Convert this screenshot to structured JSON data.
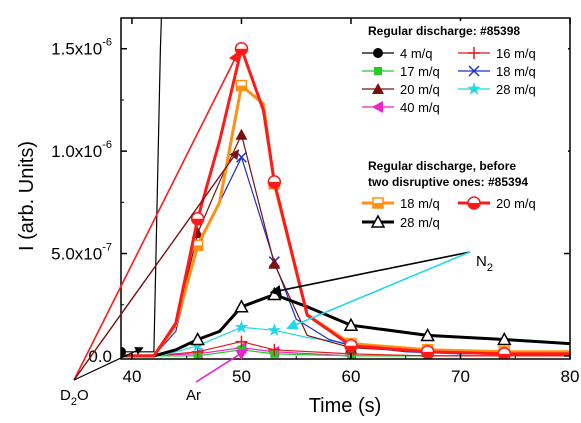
{
  "chart_data": {
    "type": "line",
    "xlabel": "Time (s)",
    "ylabel": "I (arb. Units)",
    "xlim": [
      39,
      80
    ],
    "ylim": [
      -1.5e-08,
      1.65e-06
    ],
    "x_ticks": [
      40,
      50,
      60,
      70,
      80
    ],
    "y_tick_labels": [
      {
        "value": 0,
        "base": "0.0",
        "exp": ""
      },
      {
        "value": 5e-07,
        "base": "5.0x10",
        "exp": "-7"
      },
      {
        "value": 1e-06,
        "base": "1.0x10",
        "exp": "-6"
      },
      {
        "value": 1.5e-06,
        "base": "1.5x10",
        "exp": "-6"
      }
    ],
    "legend_group1_title": "Regular discharge: #85398",
    "legend_group2_title_line1": "Regular discharge, before",
    "legend_group2_title_line2": "two disruptive ones: #85394",
    "series": [
      {
        "name": "4 m/q",
        "group": 1,
        "color": "#000000",
        "marker": "circle",
        "width": 1.2,
        "x": [
          39,
          40,
          42,
          42.6,
          43.5
        ],
        "y": [
          2e-08,
          2e-08,
          2e-08,
          1.5e-06,
          3e-06
        ]
      },
      {
        "name": "16 m/q",
        "group": 1,
        "color": "#e21b1b",
        "marker": "plus",
        "width": 1.2,
        "x": [
          39,
          43,
          46,
          50,
          53,
          60,
          67,
          74,
          80
        ],
        "y": [
          0,
          5e-09,
          2e-08,
          7e-08,
          3e-08,
          1e-08,
          0,
          0,
          0
        ]
      },
      {
        "name": "17 m/q",
        "group": 1,
        "color": "#22cc22",
        "marker": "square-filled",
        "width": 1.2,
        "x": [
          39,
          46,
          50,
          53,
          60,
          67,
          74,
          80
        ],
        "y": [
          0,
          0,
          3e-08,
          1e-08,
          0,
          0,
          0,
          0
        ]
      },
      {
        "name": "18 m/q",
        "group": 1,
        "color": "#1f2fd0",
        "marker": "x",
        "width": 1.2,
        "x": [
          39,
          42,
          44,
          46,
          48,
          50,
          53,
          55,
          58,
          60,
          65,
          70,
          75,
          80
        ],
        "y": [
          0,
          0,
          1.2e-07,
          5.5e-07,
          7.5e-07,
          9.7e-07,
          4.6e-07,
          1.8e-07,
          8e-08,
          5e-08,
          2e-08,
          1e-08,
          1e-08,
          5e-09
        ]
      },
      {
        "name": "20 m/q",
        "group": 1,
        "color": "#7a1010",
        "marker": "triangle-filled",
        "width": 1.2,
        "x": [
          39,
          42,
          44,
          46,
          48,
          50,
          53,
          56,
          60,
          67,
          74,
          80
        ],
        "y": [
          0,
          0,
          1.5e-07,
          6e-07,
          8.5e-07,
          1.08e-06,
          4.5e-07,
          1e-07,
          4e-08,
          2e-08,
          1e-08,
          1e-08
        ]
      },
      {
        "name": "28 m/q",
        "group": 1,
        "color": "#22d8e8",
        "marker": "star",
        "width": 1.2,
        "x": [
          39,
          43,
          46,
          50,
          53,
          56,
          60,
          67,
          74,
          80
        ],
        "y": [
          0,
          5e-09,
          5e-08,
          1.4e-07,
          1.25e-07,
          9e-08,
          6e-08,
          3e-08,
          2e-08,
          1e-08
        ]
      },
      {
        "name": "40 m/q",
        "group": 1,
        "color": "#ee22cc",
        "marker": "triangle-left-filled",
        "width": 1.2,
        "x": [
          39,
          46,
          50,
          53,
          60,
          67,
          74,
          80
        ],
        "y": [
          0,
          1e-08,
          4e-08,
          2e-08,
          0,
          0,
          0,
          0
        ]
      },
      {
        "name": "18 m/q",
        "group": 2,
        "color": "#ff9014",
        "marker": "square-half",
        "width": 3,
        "x": [
          39,
          42,
          44,
          46,
          48,
          50,
          52,
          53,
          56,
          60,
          67,
          74,
          80
        ],
        "y": [
          0,
          0,
          1.5e-07,
          5.4e-07,
          7.5e-07,
          1.32e-06,
          1.23e-06,
          8.4e-07,
          2e-07,
          6e-08,
          3e-08,
          2e-08,
          2e-08
        ]
      },
      {
        "name": "20 m/q",
        "group": 2,
        "color": "#ff1a1a",
        "marker": "circle-half",
        "width": 3,
        "x": [
          39,
          42,
          44,
          46,
          48,
          50,
          52,
          53,
          56,
          60,
          67,
          74,
          80
        ],
        "y": [
          0,
          0,
          1.6e-07,
          6.7e-07,
          1.05e-06,
          1.5e-06,
          1.2e-06,
          8.5e-07,
          2e-07,
          5e-08,
          2e-08,
          1e-08,
          1e-08
        ]
      },
      {
        "name": "28 m/q",
        "group": 2,
        "color": "#000000",
        "marker": "triangle-open",
        "width": 3,
        "x": [
          39,
          42,
          44,
          46,
          48,
          50,
          53,
          56,
          60,
          67,
          74,
          80
        ],
        "y": [
          0,
          0,
          3e-08,
          8e-08,
          1.2e-07,
          2.4e-07,
          3e-07,
          2.4e-07,
          1.5e-07,
          1e-07,
          8e-08,
          6e-08
        ]
      }
    ],
    "annotations": [
      {
        "text": "D",
        "sub": "2",
        "tail": "O",
        "color": "#ff1a1a",
        "points_to": [
          50,
          1.5e-06
        ],
        "extra_arrow_color": "#7a1010",
        "extra_points_to": [
          50,
          1.02e-06
        ],
        "third_arrow_color": "#000000",
        "third_points_to": [
          41,
          4e-08
        ]
      },
      {
        "text": "Ar",
        "sub": "",
        "tail": "",
        "color": "#ee22cc",
        "points_to": [
          50.5,
          4e-08
        ]
      },
      {
        "text": "N",
        "sub": "2",
        "tail": "",
        "color": "#000000",
        "points_to": [
          52.5,
          3.1e-07
        ],
        "extra_arrow_color": "#22d8e8",
        "extra_points_to": [
          54,
          1.35e-07
        ]
      }
    ]
  }
}
